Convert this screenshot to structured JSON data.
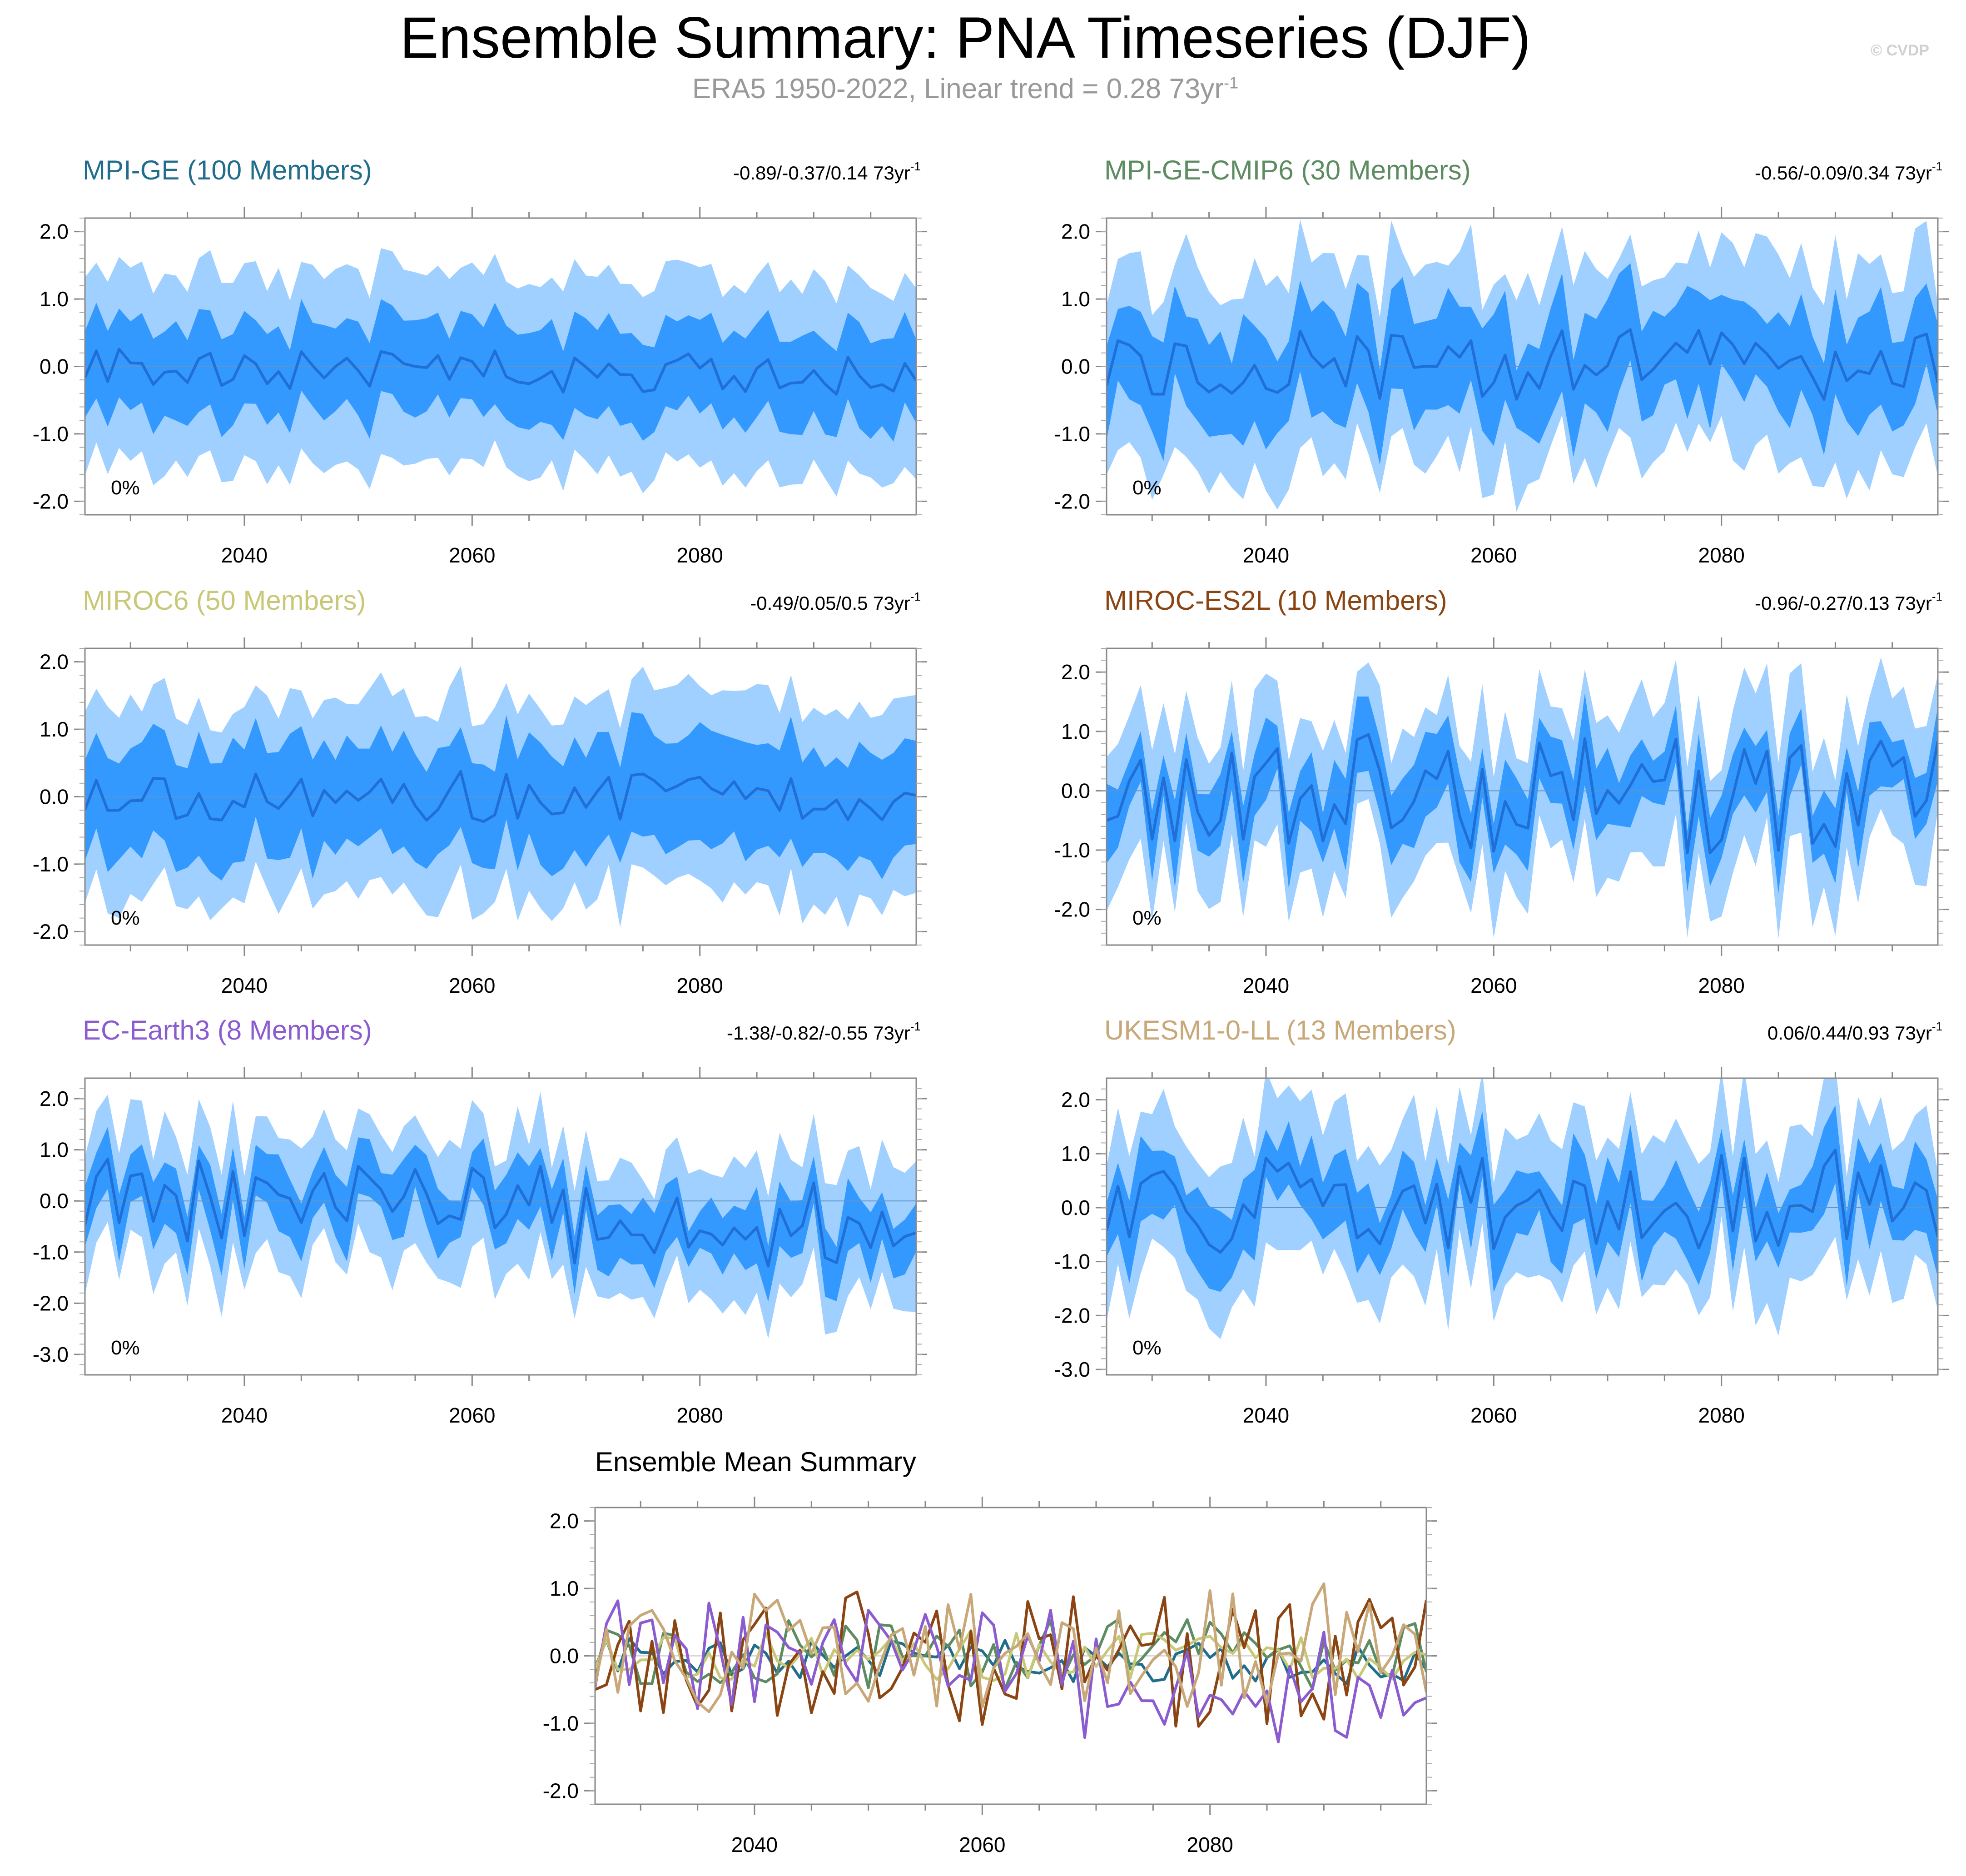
{
  "header": {
    "title": "Ensemble Summary: PNA Timeseries (DJF)",
    "subtitle": "ERA5 1950-2022, Linear trend = 0.28 73yr",
    "subtitle_sup": "-1",
    "watermark": "© CVDP"
  },
  "colors": {
    "outer_band": "#a0d0ff",
    "inner_band": "#3399ff",
    "mean_line": "#1f6fd6"
  },
  "chart_data": [
    {
      "id": "mpige",
      "type": "area",
      "title": "MPI-GE (100 Members)",
      "title_color": "#206d8c",
      "trend": "-0.89/-0.37/0.14 73yr",
      "trend_sup": "-1",
      "pct": "0%",
      "xlim": [
        2026,
        2099
      ],
      "ylim": [
        -2.2,
        2.2
      ],
      "yticks": [
        2.0,
        1.0,
        0.0,
        -1.0,
        -2.0
      ],
      "ytick_labels": [
        "2.0",
        "1.0",
        "0.0",
        "-1.0",
        "-2.0"
      ],
      "xticks": [
        2040,
        2060,
        2080
      ],
      "xtick_labels": [
        "2040",
        "2060",
        "2080"
      ],
      "amp": 0.32,
      "outer": 1.42,
      "inner": 0.68,
      "noise": 0.12,
      "trend_shift": -0.3,
      "seed": 3
    },
    {
      "id": "cmip6",
      "type": "area",
      "title": "MPI-GE-CMIP6 (30 Members)",
      "title_color": "#5e8c62",
      "trend": "-0.56/-0.09/0.34 73yr",
      "trend_sup": "-1",
      "pct": "0%",
      "xlim": [
        2026,
        2099
      ],
      "ylim": [
        -2.2,
        2.2
      ],
      "yticks": [
        2.0,
        1.0,
        0.0,
        -1.0,
        -2.0
      ],
      "ytick_labels": [
        "2.0",
        "1.0",
        "0.0",
        "-1.0",
        "-2.0"
      ],
      "xticks": [
        2040,
        2060,
        2080
      ],
      "xtick_labels": [
        "2040",
        "2060",
        "2080"
      ],
      "amp": 0.55,
      "outer": 1.45,
      "inner": 0.72,
      "noise": 0.3,
      "trend_shift": 0.0,
      "seed": 11
    },
    {
      "id": "miroc6",
      "type": "area",
      "title": "MIROC6 (50 Members)",
      "title_color": "#c8c878",
      "trend": "-0.49/0.05/0.5 73yr",
      "trend_sup": "-1",
      "pct": "0%",
      "xlim": [
        2026,
        2099
      ],
      "ylim": [
        -2.2,
        2.2
      ],
      "yticks": [
        2.0,
        1.0,
        0.0,
        -1.0,
        -2.0
      ],
      "ytick_labels": [
        "2.0",
        "1.0",
        "0.0",
        "-1.0",
        "-2.0"
      ],
      "xticks": [
        2040,
        2060,
        2080
      ],
      "xtick_labels": [
        "2040",
        "2060",
        "2080"
      ],
      "amp": 0.38,
      "outer": 1.45,
      "inner": 0.78,
      "noise": 0.16,
      "trend_shift": 0.0,
      "seed": 23
    },
    {
      "id": "miroces2l",
      "type": "area",
      "title": "MIROC-ES2L (10 Members)",
      "title_color": "#8b4513",
      "trend": "-0.96/-0.27/0.13 73yr",
      "trend_sup": "-1",
      "pct": "0%",
      "xlim": [
        2026,
        2099
      ],
      "ylim": [
        -2.6,
        2.4
      ],
      "yticks": [
        2.0,
        1.0,
        0.0,
        -1.0,
        -2.0
      ],
      "ytick_labels": [
        "2.0",
        "1.0",
        "0.0",
        "-1.0",
        "-2.0"
      ],
      "xticks": [
        2040,
        2060,
        2080
      ],
      "xtick_labels": [
        "2040",
        "2060",
        "2080"
      ],
      "amp": 1.0,
      "outer": 1.3,
      "inner": 0.55,
      "noise": 0.25,
      "trend_shift": -0.2,
      "seed": 37
    },
    {
      "id": "ecearth3",
      "type": "area",
      "title": "EC-Earth3 (8 Members)",
      "title_color": "#8a5cd0",
      "trend": "-1.38/-0.82/-0.55 73yr",
      "trend_sup": "-1",
      "pct": "0%",
      "xlim": [
        2026,
        2099
      ],
      "ylim": [
        -3.4,
        2.4
      ],
      "yticks": [
        2.0,
        1.0,
        0.0,
        -1.0,
        -2.0,
        -3.0
      ],
      "ytick_labels": [
        "2.0",
        "1.0",
        "0.0",
        "-1.0",
        "-2.0",
        "-3.0"
      ],
      "xticks": [
        2040,
        2060,
        2080
      ],
      "xtick_labels": [
        "2040",
        "2060",
        "2080"
      ],
      "amp": 0.95,
      "outer": 1.3,
      "inner": 0.55,
      "noise": 0.25,
      "trend_shift": -0.8,
      "seed": 51
    },
    {
      "id": "ukesm",
      "type": "area",
      "title": "UKESM1-0-LL (13 Members)",
      "title_color": "#c8a878",
      "trend": "0.06/0.44/0.93 73yr",
      "trend_sup": "-1",
      "pct": "0%",
      "xlim": [
        2026,
        2099
      ],
      "ylim": [
        -3.1,
        2.4
      ],
      "yticks": [
        2.0,
        1.0,
        0.0,
        -1.0,
        -2.0,
        -3.0
      ],
      "ytick_labels": [
        "2.0",
        "1.0",
        "0.0",
        "-1.0",
        "-2.0",
        "-3.0"
      ],
      "xticks": [
        2040,
        2060,
        2080
      ],
      "xtick_labels": [
        "2040",
        "2060",
        "2080"
      ],
      "amp": 0.9,
      "outer": 1.4,
      "inner": 0.6,
      "noise": 0.3,
      "trend_shift": 0.35,
      "seed": 67
    },
    {
      "id": "summary",
      "type": "line",
      "title": "Ensemble Mean Summary",
      "title_color": "#000000",
      "xlim": [
        2026,
        2099
      ],
      "ylim": [
        -2.2,
        2.2
      ],
      "yticks": [
        2.0,
        1.0,
        0.0,
        -1.0,
        -2.0
      ],
      "ytick_labels": [
        "2.0",
        "1.0",
        "0.0",
        "-1.0",
        "-2.0"
      ],
      "xticks": [
        2040,
        2060,
        2080
      ],
      "xtick_labels": [
        "2040",
        "2060",
        "2080"
      ],
      "series": [
        {
          "name": "MPI-GE",
          "color": "#206d8c",
          "ref": "mpige"
        },
        {
          "name": "MPI-GE-CMIP6",
          "color": "#5e8c62",
          "ref": "cmip6"
        },
        {
          "name": "MIROC6",
          "color": "#c8c878",
          "ref": "miroc6"
        },
        {
          "name": "MIROC-ES2L",
          "color": "#8b4513",
          "ref": "miroces2l"
        },
        {
          "name": "EC-Earth3",
          "color": "#8a5cd0",
          "ref": "ecearth3"
        },
        {
          "name": "UKESM1-0-LL",
          "color": "#c8a878",
          "ref": "ukesm"
        }
      ]
    }
  ]
}
